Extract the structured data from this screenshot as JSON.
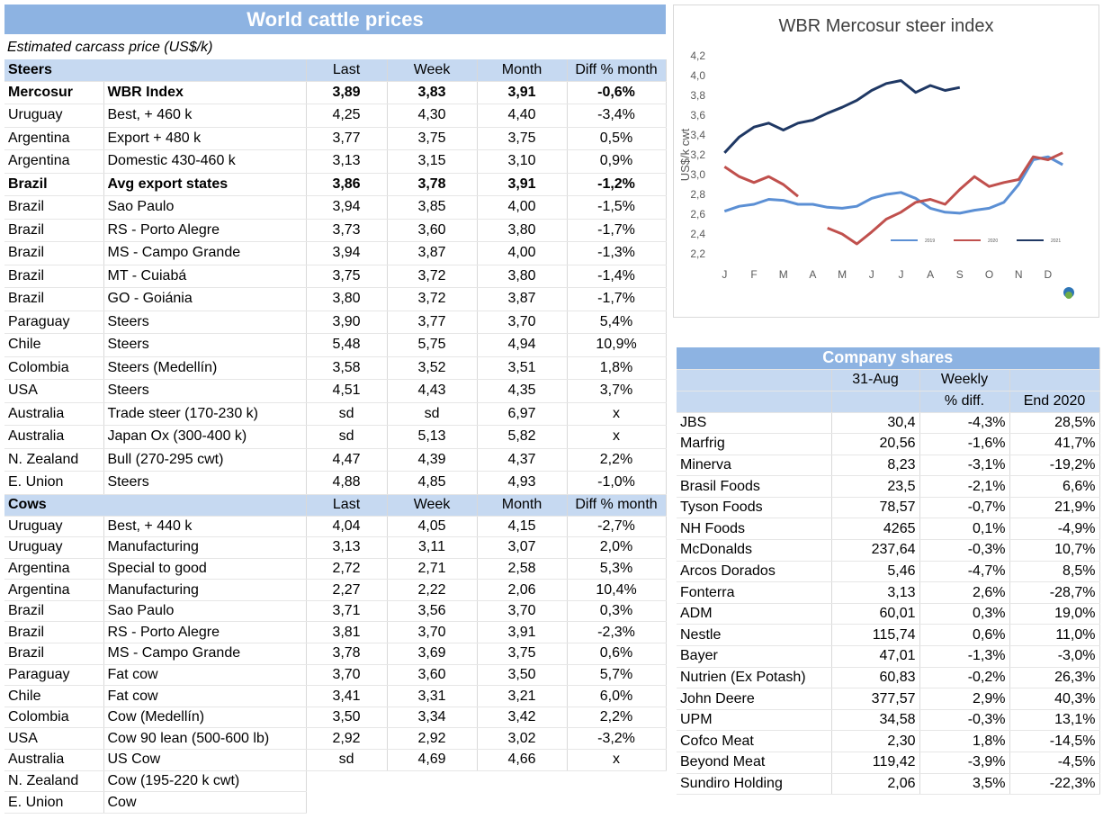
{
  "header": {
    "title": "World cattle prices",
    "subtitle": "Estimated carcass price (US$/k)"
  },
  "steers": {
    "label": "Steers",
    "columns": [
      "Last",
      "Week",
      "Month",
      "Diff % month"
    ],
    "rows": [
      {
        "cells": [
          "Mercosur",
          "WBR Index",
          "3,89",
          "3,83",
          "3,91",
          "-0,6%"
        ],
        "bold": true
      },
      {
        "cells": [
          "Uruguay",
          "Best, + 460 k",
          "4,25",
          "4,30",
          "4,40",
          "-3,4%"
        ]
      },
      {
        "cells": [
          "Argentina",
          "Export + 480 k",
          "3,77",
          "3,75",
          "3,75",
          "0,5%"
        ]
      },
      {
        "cells": [
          "Argentina",
          "Domestic 430-460 k",
          "3,13",
          "3,15",
          "3,10",
          "0,9%"
        ]
      },
      {
        "cells": [
          "Brazil",
          "Avg export states",
          "3,86",
          "3,78",
          "3,91",
          "-1,2%"
        ],
        "bold": true
      },
      {
        "cells": [
          "Brazil",
          "Sao Paulo",
          "3,94",
          "3,85",
          "4,00",
          "-1,5%"
        ]
      },
      {
        "cells": [
          "Brazil",
          "RS - Porto Alegre",
          "3,73",
          "3,60",
          "3,80",
          "-1,7%"
        ]
      },
      {
        "cells": [
          "Brazil",
          "MS - Campo Grande",
          "3,94",
          "3,87",
          "4,00",
          "-1,3%"
        ]
      },
      {
        "cells": [
          "Brazil",
          "MT - Cuiabá",
          "3,75",
          "3,72",
          "3,80",
          "-1,4%"
        ]
      },
      {
        "cells": [
          "Brazil",
          "GO - Goiánia",
          "3,80",
          "3,72",
          "3,87",
          "-1,7%"
        ]
      },
      {
        "cells": [
          "Paraguay",
          "Steers",
          "3,90",
          "3,77",
          "3,70",
          "5,4%"
        ]
      },
      {
        "cells": [
          "Chile",
          "Steers",
          "5,48",
          "5,75",
          "4,94",
          "10,9%"
        ]
      },
      {
        "cells": [
          "Colombia",
          "Steers (Medellín)",
          "3,58",
          "3,52",
          "3,51",
          "1,8%"
        ]
      },
      {
        "cells": [
          "USA",
          "Steers",
          "4,51",
          "4,43",
          "4,35",
          "3,7%"
        ]
      },
      {
        "cells": [
          "Australia",
          "Trade steer (170-230 k)",
          "sd",
          "sd",
          "6,97",
          "x"
        ]
      },
      {
        "cells": [
          "Australia",
          "Japan Ox (300-400 k)",
          "sd",
          "5,13",
          "5,82",
          "x"
        ]
      },
      {
        "cells": [
          "N. Zealand",
          "Bull (270-295 cwt)",
          "4,47",
          "4,39",
          "4,37",
          "2,2%"
        ]
      },
      {
        "cells": [
          "E. Union",
          "Steers",
          "4,88",
          "4,85",
          "4,93",
          "-1,0%"
        ]
      }
    ]
  },
  "cows": {
    "label": "Cows",
    "columns": [
      "Last",
      "Week",
      "Month",
      "Diff % month"
    ],
    "rows": [
      {
        "cells": [
          "Uruguay",
          "Best, + 440 k",
          "4,04",
          "4,05",
          "4,15",
          "-2,7%"
        ]
      },
      {
        "cells": [
          "Uruguay",
          "Manufacturing",
          "3,13",
          "3,11",
          "3,07",
          "2,0%"
        ]
      },
      {
        "cells": [
          "Argentina",
          "Special to good",
          "2,72",
          "2,71",
          "2,58",
          "5,3%"
        ]
      },
      {
        "cells": [
          "Argentina",
          "Manufacturing",
          "2,27",
          "2,22",
          "2,06",
          "10,4%"
        ]
      },
      {
        "cells": [
          "Brazil",
          "Sao Paulo",
          "3,71",
          "3,56",
          "3,70",
          "0,3%"
        ]
      },
      {
        "cells": [
          "Brazil",
          "RS - Porto Alegre",
          "3,81",
          "3,70",
          "3,91",
          "-2,3%"
        ]
      },
      {
        "cells": [
          "Brazil",
          "MS - Campo Grande",
          "3,78",
          "3,69",
          "3,75",
          "0,6%"
        ]
      },
      {
        "cells": [
          "Paraguay",
          "Fat cow",
          "3,70",
          "3,60",
          "3,50",
          "5,7%"
        ]
      },
      {
        "cells": [
          "Chile",
          "Fat cow",
          "3,41",
          "3,31",
          "3,21",
          "6,0%"
        ]
      },
      {
        "cells": [
          "Colombia",
          "Cow (Medellín)",
          "3,50",
          "3,34",
          "3,42",
          "2,2%"
        ]
      },
      {
        "cells": [
          "USA",
          "Cow 90 lean (500-600 lb)",
          "2,92",
          "2,92",
          "3,02",
          "-3,2%"
        ]
      },
      {
        "cells": [
          "Australia",
          "US Cow",
          "sd",
          "4,69",
          "4,66",
          "x"
        ]
      },
      {
        "cells": [
          "N. Zealand",
          "Cow (195-220 k cwt)"
        ]
      },
      {
        "cells": [
          "E. Union",
          "Cow"
        ]
      }
    ]
  },
  "company_shares": {
    "title": "Company shares",
    "columns": [
      "31-Aug",
      "Weekly",
      "% diff.",
      "End 2020"
    ],
    "rows": [
      [
        "JBS",
        "30,4",
        "-4,3%",
        "28,5%"
      ],
      [
        "Marfrig",
        "20,56",
        "-1,6%",
        "41,7%"
      ],
      [
        "Minerva",
        "8,23",
        "-3,1%",
        "-19,2%"
      ],
      [
        "Brasil Foods",
        "23,5",
        "-2,1%",
        "6,6%"
      ],
      [
        "Tyson Foods",
        "78,57",
        "-0,7%",
        "21,9%"
      ],
      [
        "NH Foods",
        "4265",
        "0,1%",
        "-4,9%"
      ],
      [
        "McDonalds",
        "237,64",
        "-0,3%",
        "10,7%"
      ],
      [
        "Arcos Dorados",
        "5,46",
        "-4,7%",
        "8,5%"
      ],
      [
        "Fonterra",
        "3,13",
        "2,6%",
        "-28,7%"
      ],
      [
        "ADM",
        "60,01",
        "0,3%",
        "19,0%"
      ],
      [
        "Nestle",
        "115,74",
        "0,6%",
        "11,0%"
      ],
      [
        "Bayer",
        "47,01",
        "-1,3%",
        "-3,0%"
      ],
      [
        "Nutrien (Ex Potash)",
        "60,83",
        "-0,2%",
        "26,3%"
      ],
      [
        "John Deere",
        "377,57",
        "2,9%",
        "40,3%"
      ],
      [
        "UPM",
        "34,58",
        "-0,3%",
        "13,1%"
      ],
      [
        "Cofco Meat",
        "2,30",
        "1,8%",
        "-14,5%"
      ],
      [
        "Beyond Meat",
        "119,42",
        "-3,9%",
        "-4,5%"
      ],
      [
        "Sundiro Holding",
        "2,06",
        "3,5%",
        "-22,3%"
      ]
    ]
  },
  "chart_data": {
    "type": "line",
    "title": "WBR Mercosur steer index",
    "y_label": "US$/k cwt",
    "x": [
      0,
      0.5,
      1,
      1.5,
      2,
      2.5,
      3,
      3.5,
      4,
      4.5,
      5,
      5.5,
      6,
      6.5,
      7,
      7.5,
      8,
      8.5,
      9,
      9.5,
      10,
      10.5,
      11,
      11.5
    ],
    "xlim": [
      -0.5,
      11.8
    ],
    "xticks": [
      {
        "value": 0,
        "label": "J"
      },
      {
        "value": 1,
        "label": "F"
      },
      {
        "value": 2,
        "label": "M"
      },
      {
        "value": 3,
        "label": "A"
      },
      {
        "value": 4,
        "label": "M"
      },
      {
        "value": 5,
        "label": "J"
      },
      {
        "value": 6,
        "label": "J"
      },
      {
        "value": 7,
        "label": "A"
      },
      {
        "value": 8,
        "label": "S"
      },
      {
        "value": 9,
        "label": "O"
      },
      {
        "value": 10,
        "label": "N"
      },
      {
        "value": 11,
        "label": "D"
      }
    ],
    "ylim": [
      2.2,
      4.2
    ],
    "yticks": [
      {
        "value": 2.2,
        "label": "2,2"
      },
      {
        "value": 2.4,
        "label": "2,4"
      },
      {
        "value": 2.6,
        "label": "2,6"
      },
      {
        "value": 2.8,
        "label": "2,8"
      },
      {
        "value": 3.0,
        "label": "3,0"
      },
      {
        "value": 3.2,
        "label": "3,2"
      },
      {
        "value": 3.4,
        "label": "3,4"
      },
      {
        "value": 3.6,
        "label": "3,6"
      },
      {
        "value": 3.8,
        "label": "3,8"
      },
      {
        "value": 4.0,
        "label": "4,0"
      },
      {
        "value": 4.2,
        "label": "4,2"
      }
    ],
    "grid": false,
    "legend": "bottom-right",
    "series": [
      {
        "name": "2019",
        "color": "#5b8fd4",
        "values": [
          2.63,
          2.68,
          2.7,
          2.75,
          2.74,
          2.7,
          2.7,
          2.67,
          2.66,
          2.68,
          2.76,
          2.8,
          2.82,
          2.76,
          2.66,
          2.62,
          2.61,
          2.64,
          2.66,
          2.72,
          2.9,
          3.15,
          3.18,
          3.1
        ]
      },
      {
        "name": "2020",
        "color": "#c0504d",
        "values": [
          3.08,
          2.98,
          2.92,
          2.98,
          2.9,
          2.78,
          null,
          2.46,
          2.4,
          2.3,
          2.42,
          2.55,
          2.62,
          2.72,
          2.75,
          2.7,
          2.85,
          2.98,
          2.88,
          2.92,
          2.95,
          3.18,
          3.15,
          3.22
        ]
      },
      {
        "name": "2021",
        "color": "#1f3864",
        "values": [
          3.22,
          3.38,
          3.48,
          3.52,
          3.45,
          3.52,
          3.55,
          3.62,
          3.68,
          3.75,
          3.85,
          3.92,
          3.95,
          3.83,
          3.9,
          3.85,
          3.88,
          null,
          null,
          null,
          null,
          null,
          null,
          null
        ]
      }
    ]
  }
}
